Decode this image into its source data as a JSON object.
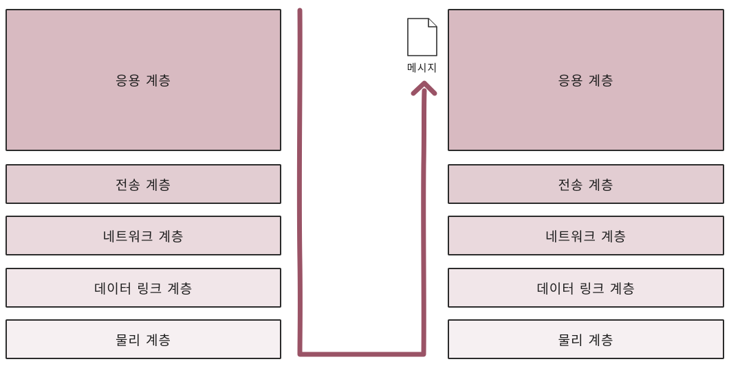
{
  "colors": {
    "arrow": "#9a5366",
    "application_layer": "#d8bac1",
    "transport_layer": "#e2cdd2",
    "network_layer": "#ead9dd",
    "data_link_layer": "#f1e6e9",
    "physical_layer": "#f6f0f2",
    "border": "#2b2b2b"
  },
  "sender_stack": {
    "application": "응용 계층",
    "transport": "전송 계층",
    "network": "네트워크 계층",
    "data_link": "데이터 링크 계층",
    "physical": "물리 계층"
  },
  "receiver_stack": {
    "application": "응용 계층",
    "transport": "전송 계층",
    "network": "네트워크 계층",
    "data_link": "데이터 링크 계층",
    "physical": "물리 계층"
  },
  "message": {
    "label": "메시지",
    "icon": "document-icon"
  }
}
